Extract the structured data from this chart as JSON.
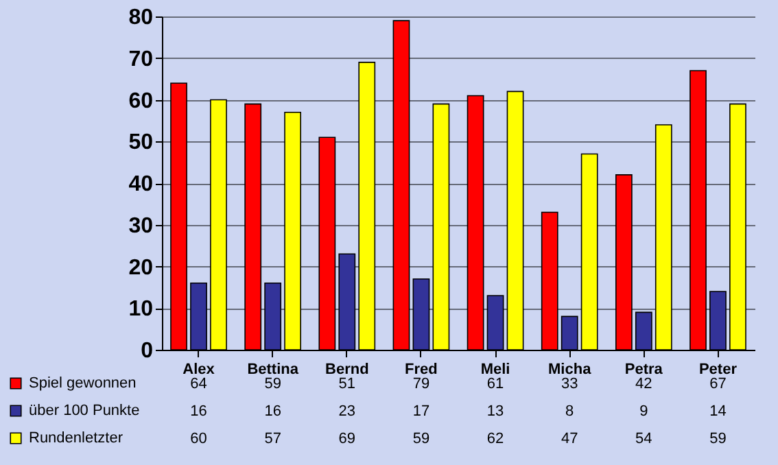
{
  "chart_data": {
    "type": "bar",
    "categories": [
      "Alex",
      "Bettina",
      "Bernd",
      "Fred",
      "Meli",
      "Micha",
      "Petra",
      "Peter"
    ],
    "series": [
      {
        "name": "Spiel gewonnen",
        "color": "#ff0000",
        "values": [
          64,
          59,
          51,
          79,
          61,
          33,
          42,
          67
        ]
      },
      {
        "name": "über 100 Punkte",
        "color": "#333399",
        "values": [
          16,
          16,
          23,
          17,
          13,
          8,
          9,
          14
        ]
      },
      {
        "name": "Rundenletzter",
        "color": "#ffff00",
        "values": [
          60,
          57,
          69,
          59,
          62,
          47,
          54,
          59
        ]
      }
    ],
    "ylim": [
      0,
      80
    ],
    "yticks": [
      0,
      10,
      20,
      30,
      40,
      50,
      60,
      70,
      80
    ],
    "grid": "y",
    "legend": "bottom left",
    "data_labels": true
  }
}
